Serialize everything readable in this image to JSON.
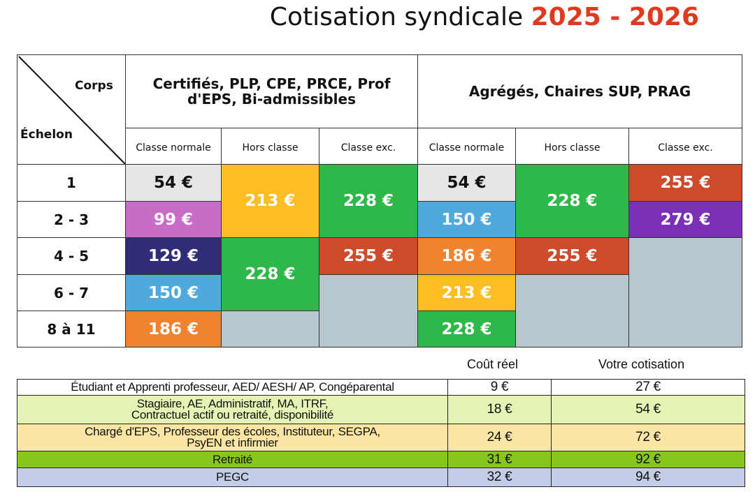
{
  "title": {
    "main": "Cotisation syndicale",
    "years": "2025 - 2026"
  },
  "corner": {
    "corps": "Corps",
    "echelon": "Échelon"
  },
  "corps_groups": [
    {
      "label": "Certifiés, PLP, CPE, PRCE, Prof d'EPS, Bi-admissibles"
    },
    {
      "label": "Agrégés, Chaires SUP, PRAG"
    }
  ],
  "classes": [
    "Classe normale",
    "Hors classe",
    "Classe exc.",
    "Classe normale",
    "Hors classe",
    "Classe exc."
  ],
  "echelons": [
    "1",
    "2 - 3",
    "4 - 5",
    "6 - 7",
    "8 à 11"
  ],
  "prices": {
    "g1_normale": [
      "54 €",
      "99 €",
      "129 €",
      "150 €",
      "186 €"
    ],
    "g1_hors": [
      "213 €",
      "228 €"
    ],
    "g1_exc": [
      "228 €",
      "255 €"
    ],
    "g2_normale": [
      "54 €",
      "150 €",
      "186 €",
      "213 €",
      "228 €"
    ],
    "g2_hors": [
      "228 €",
      "255 €"
    ],
    "g2_exc": [
      "255 €",
      "279 €"
    ]
  },
  "colors": {
    "grey": "#e6e6e6",
    "pink": "#c86cc8",
    "navy": "#2f2d78",
    "blue": "#4fa9dc",
    "orange": "#f0832f",
    "yellow": "#fdbd24",
    "green": "#2eb84a",
    "red": "#cd4a2a",
    "purple": "#7a30b4",
    "empty": "#b8c7cd"
  },
  "other": {
    "headers": {
      "cout": "Coût réel",
      "cotisation": "Votre cotisation"
    },
    "rows": [
      {
        "label": "Étudiant et Apprenti professeur, AED/ AESH/ AP, Congéparental",
        "cout": "9 €",
        "cotisation": "27 €",
        "color": "#ffffff"
      },
      {
        "label": "Stagiaire, AE, Administratif, MA, ITRF, Contractuel actif ou retraité, disponibilité",
        "cout": "18 €",
        "cotisation": "54 €",
        "color": "#e5f3b4"
      },
      {
        "label": "Chargé d'EPS, Professeur des écoles, Instituteur, SEGPA, PsyEN et infirmier",
        "cout": "24 €",
        "cotisation": "72 €",
        "color": "#fbe5a3"
      },
      {
        "label": "Retraité",
        "cout": "31 €",
        "cotisation": "92 €",
        "color": "#87c71c"
      },
      {
        "label": "PEGC",
        "cout": "32 €",
        "cotisation": "94 €",
        "color": "#c3cde8"
      }
    ]
  }
}
